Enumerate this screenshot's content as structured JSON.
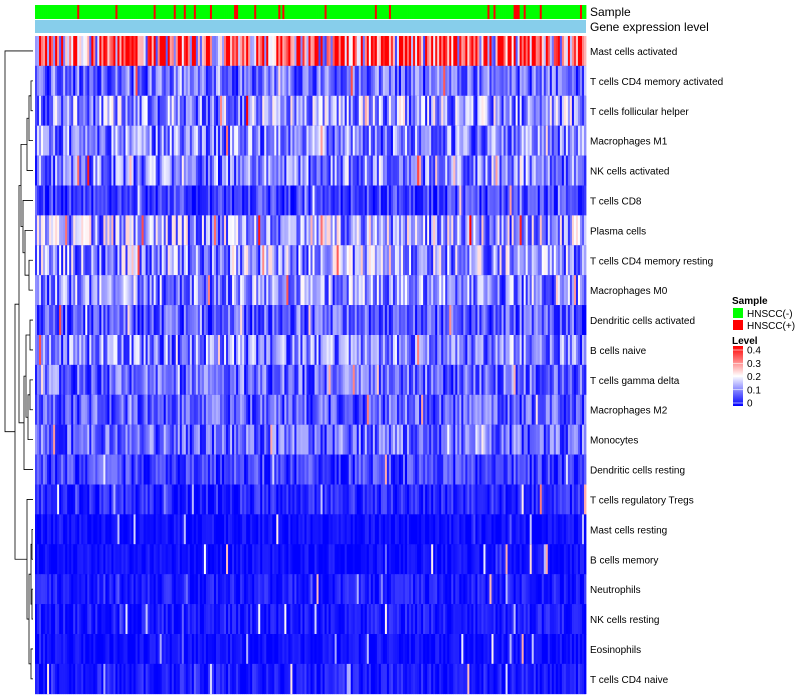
{
  "chart_data": {
    "type": "heatmap",
    "title": "",
    "annotation_tracks": [
      {
        "name": "Sample",
        "type": "categorical"
      },
      {
        "name": "Gene expression level",
        "type": "continuous"
      }
    ],
    "rows": [
      "Mast cells activated",
      "T cells CD4 memory activated",
      "T cells follicular helper",
      "Macrophages M1",
      "NK cells activated",
      "T cells CD8",
      "Plasma cells",
      "T cells CD4 memory resting",
      "Macrophages M0",
      "Dendritic cells activated",
      "B cells naive",
      "T cells gamma delta",
      "Macrophages M2",
      "Monocytes",
      "Dendritic cells resting",
      "T cells regulatory  Tregs",
      "Mast cells resting",
      "B cells memory",
      "Neutrophils",
      "NK cells resting",
      "Eosinophils",
      "T cells CD4 naive"
    ],
    "n_columns": 274,
    "row_mean_level": [
      0.32,
      0.08,
      0.12,
      0.1,
      0.1,
      0.05,
      0.13,
      0.12,
      0.11,
      0.07,
      0.1,
      0.08,
      0.07,
      0.08,
      0.05,
      0.03,
      0.01,
      0.01,
      0.02,
      0.02,
      0.01,
      0.02
    ],
    "sample_groups": [
      {
        "label": "HNSCC(-)",
        "color": "#00ff00"
      },
      {
        "label": "HNSCC(+)",
        "color": "#ff0000"
      }
    ],
    "sample_legend_title": "Sample",
    "level_legend": {
      "title": "Level",
      "ticks": [
        "0.4",
        "0.3",
        "0.2",
        "0.1",
        "0"
      ],
      "range": [
        0,
        0.4
      ],
      "colors": [
        "#0000ff",
        "#ffffff",
        "#ff0000"
      ]
    },
    "gene_expression_color": "#87ceeb",
    "row_dendrogram": true
  }
}
